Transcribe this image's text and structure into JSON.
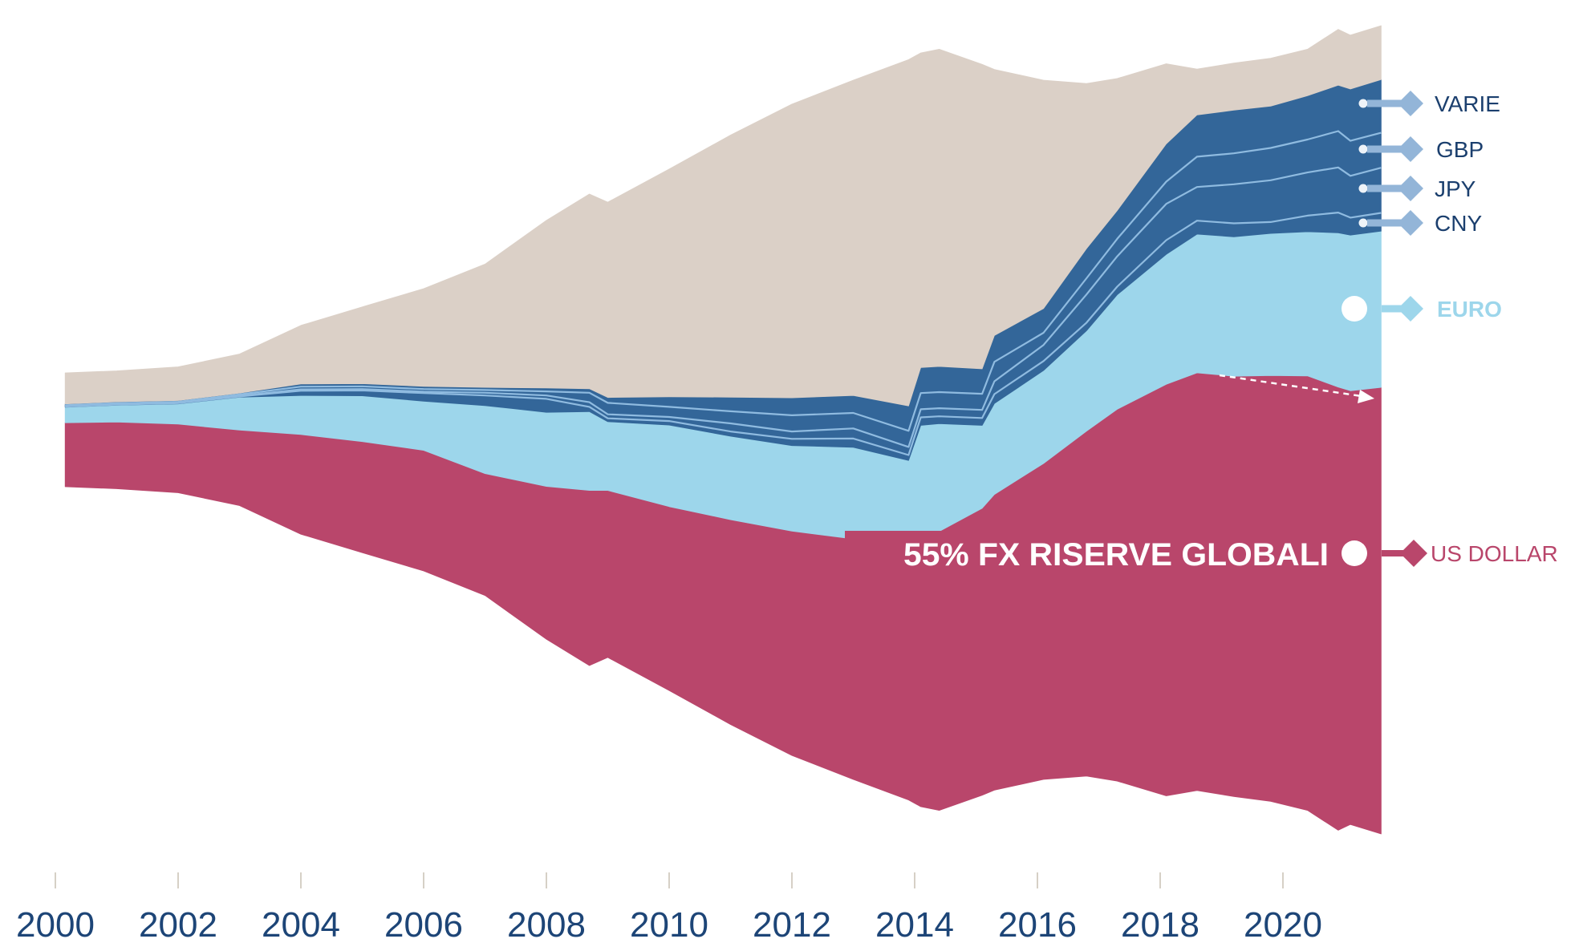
{
  "chart_data": {
    "type": "area",
    "layout_style": "streamgraph",
    "title": "",
    "xlabel": "",
    "ylabel": "",
    "grid": false,
    "xlim": [
      2000,
      2021.6
    ],
    "x_ticks": [
      "2000",
      "2002",
      "2004",
      "2006",
      "2008",
      "2010",
      "2012",
      "2014",
      "2016",
      "2018",
      "2020"
    ],
    "x": [
      2000.16,
      2001,
      2002,
      2003,
      2004,
      2005,
      2006,
      2007,
      2008,
      2008.7,
      2009,
      2010,
      2011,
      2012,
      2013,
      2013.9,
      2014.1,
      2014.4,
      2015.1,
      2015.3,
      2016.1,
      2016.8,
      2017.3,
      2018.1,
      2018.6,
      2019.2,
      2019.8,
      2020.4,
      2020.9,
      2021.1,
      2021.6
    ],
    "series": [
      {
        "key": "usd",
        "name": "US DOLLAR",
        "color": "#b9466b",
        "values": [
          0.95,
          0.99,
          1.02,
          1.12,
          1.48,
          1.65,
          1.79,
          1.81,
          2.27,
          2.6,
          2.48,
          2.73,
          3.04,
          3.33,
          3.57,
          3.89,
          4.02,
          4.14,
          4.26,
          4.39,
          4.69,
          5.12,
          5.52,
          6.11,
          6.2,
          6.24,
          6.32,
          6.45,
          6.58,
          6.44,
          6.63
        ]
      },
      {
        "key": "eur",
        "name": "EURO",
        "color": "#9dd6eb",
        "values": [
          0.23,
          0.25,
          0.3,
          0.49,
          0.58,
          0.68,
          0.73,
          1.01,
          1.1,
          1.17,
          1.02,
          1.21,
          1.24,
          1.27,
          1.36,
          1.15,
          1.64,
          1.6,
          1.23,
          1.35,
          1.38,
          1.49,
          1.7,
          1.93,
          2.06,
          2.07,
          2.11,
          2.14,
          2.29,
          2.31,
          2.32
        ]
      },
      {
        "key": "cny",
        "name": "CNY",
        "color": "#336699",
        "values": [
          0.01,
          0.01,
          0.01,
          0.01,
          0.07,
          0.08,
          0.12,
          0.15,
          0.2,
          0.07,
          0.05,
          0.06,
          0.07,
          0.1,
          0.13,
          0.08,
          0.12,
          0.11,
          0.11,
          0.14,
          0.14,
          0.12,
          0.12,
          0.21,
          0.2,
          0.2,
          0.17,
          0.24,
          0.3,
          0.26,
          0.27
        ]
      },
      {
        "key": "jpy",
        "name": "JPY",
        "color": "#336699",
        "values": [
          0.01,
          0.01,
          0.01,
          0.01,
          0.02,
          0.02,
          0.02,
          0.04,
          0.05,
          0.07,
          0.06,
          0.06,
          0.12,
          0.11,
          0.15,
          0.12,
          0.12,
          0.12,
          0.12,
          0.19,
          0.24,
          0.42,
          0.45,
          0.54,
          0.5,
          0.58,
          0.62,
          0.64,
          0.67,
          0.62,
          0.67
        ]
      },
      {
        "key": "gbp",
        "name": "GBP",
        "color": "#336699",
        "values": [
          0.01,
          0.01,
          0.01,
          0.02,
          0.04,
          0.04,
          0.04,
          0.04,
          0.06,
          0.14,
          0.17,
          0.15,
          0.18,
          0.24,
          0.23,
          0.24,
          0.24,
          0.24,
          0.24,
          0.29,
          0.18,
          0.24,
          0.26,
          0.33,
          0.45,
          0.46,
          0.48,
          0.49,
          0.54,
          0.52,
          0.52
        ]
      },
      {
        "key": "varie",
        "name": "VARIE",
        "color": "#336699",
        "values": [
          0.02,
          0.02,
          0.02,
          0.02,
          0.04,
          0.04,
          0.04,
          0.04,
          0.05,
          0.06,
          0.08,
          0.15,
          0.21,
          0.26,
          0.26,
          0.37,
          0.38,
          0.38,
          0.37,
          0.39,
          0.36,
          0.44,
          0.42,
          0.56,
          0.62,
          0.64,
          0.62,
          0.65,
          0.68,
          0.77,
          0.79
        ]
      },
      {
        "key": "other",
        "name": "",
        "color": "#dbd0c7",
        "values": [
          0.46,
          0.46,
          0.5,
          0.58,
          0.87,
          1.14,
          1.45,
          1.83,
          2.49,
          2.89,
          2.9,
          3.38,
          3.89,
          4.36,
          4.68,
          5.14,
          4.67,
          4.71,
          4.52,
          3.95,
          3.39,
          2.45,
          1.96,
          1.19,
          0.68,
          0.7,
          0.71,
          0.69,
          0.83,
          0.8,
          0.8
        ]
      }
    ],
    "legend": [
      {
        "label": "VARIE",
        "series": "varie"
      },
      {
        "label": "GBP",
        "series": "gbp"
      },
      {
        "label": "JPY",
        "series": "jpy"
      },
      {
        "label": "CNY",
        "series": "cny"
      },
      {
        "label": "EURO",
        "series": "eur"
      },
      {
        "label": "US DOLLAR",
        "series": "usd"
      }
    ],
    "legend_placement": "right",
    "annotation": {
      "text": "55% FX RISERVE GLOBALI",
      "series": "usd"
    }
  },
  "colors": {
    "usd": "#b9466b",
    "euro": "#9dd6eb",
    "dark_band": "#336699",
    "band_separator": "#8fbbe0",
    "other": "#dbd0c7",
    "legend_connector": "#93b5d8",
    "legend_text": "#1b3f6e",
    "axis_text": "#1d4577",
    "tick": "#d6d0c6"
  }
}
